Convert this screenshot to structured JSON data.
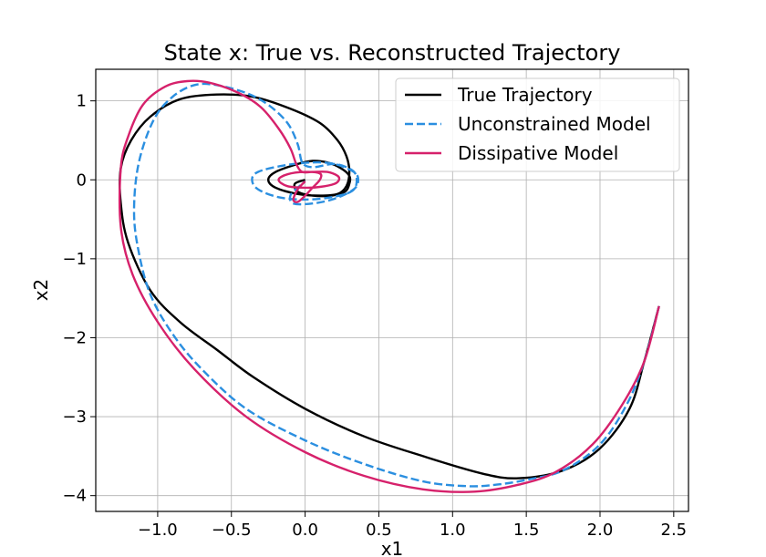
{
  "chart_data": {
    "type": "line",
    "title": "State x: True vs. Reconstructed Trajectory",
    "xlabel": "x1",
    "ylabel": "x2",
    "xlim": [
      -1.42,
      2.6
    ],
    "ylim": [
      -4.2,
      1.4
    ],
    "xticks": [
      -1.0,
      -0.5,
      0.0,
      0.5,
      1.0,
      1.5,
      2.0,
      2.5
    ],
    "xtick_labels": [
      "−1.0",
      "−0.5",
      "0.0",
      "0.5",
      "1.0",
      "1.5",
      "2.0",
      "2.5"
    ],
    "yticks": [
      -4,
      -3,
      -2,
      -1,
      0,
      1
    ],
    "ytick_labels": [
      "−4",
      "−3",
      "−2",
      "−1",
      "0",
      "1"
    ],
    "grid": true,
    "legend_position": "top-right",
    "series": [
      {
        "name": "True Trajectory",
        "color": "#000000",
        "style": "solid",
        "points": [
          [
            2.4,
            -1.6
          ],
          [
            2.3,
            -2.3
          ],
          [
            2.2,
            -2.9
          ],
          [
            2.0,
            -3.4
          ],
          [
            1.75,
            -3.68
          ],
          [
            1.45,
            -3.78
          ],
          [
            1.2,
            -3.72
          ],
          [
            0.8,
            -3.5
          ],
          [
            0.4,
            -3.25
          ],
          [
            0.0,
            -2.9
          ],
          [
            -0.35,
            -2.5
          ],
          [
            -0.6,
            -2.15
          ],
          [
            -0.85,
            -1.8
          ],
          [
            -1.05,
            -1.4
          ],
          [
            -1.2,
            -0.8
          ],
          [
            -1.25,
            -0.3
          ],
          [
            -1.25,
            0.15
          ],
          [
            -1.18,
            0.5
          ],
          [
            -1.05,
            0.8
          ],
          [
            -0.85,
            1.02
          ],
          [
            -0.6,
            1.08
          ],
          [
            -0.35,
            1.05
          ],
          [
            -0.1,
            0.9
          ],
          [
            0.1,
            0.72
          ],
          [
            0.22,
            0.5
          ],
          [
            0.28,
            0.3
          ],
          [
            0.3,
            0.1
          ],
          [
            0.28,
            -0.08
          ],
          [
            0.22,
            -0.18
          ],
          [
            0.1,
            -0.2
          ],
          [
            -0.05,
            -0.18
          ],
          [
            -0.2,
            -0.1
          ],
          [
            -0.25,
            0.0
          ],
          [
            -0.2,
            0.1
          ],
          [
            -0.05,
            0.2
          ],
          [
            0.05,
            0.24
          ],
          [
            0.15,
            0.22
          ],
          [
            0.24,
            0.15
          ],
          [
            0.3,
            0.05
          ],
          [
            0.3,
            -0.05
          ],
          [
            0.27,
            -0.15
          ],
          [
            0.18,
            -0.2
          ],
          [
            0.05,
            -0.2
          ],
          [
            -0.05,
            -0.15
          ],
          [
            -0.07,
            -0.05
          ],
          [
            0.0,
            0.0
          ]
        ]
      },
      {
        "name": "Unconstrained Model",
        "color": "#2b8fe0",
        "style": "dashed",
        "points": [
          [
            2.4,
            -1.6
          ],
          [
            2.3,
            -2.3
          ],
          [
            2.18,
            -2.85
          ],
          [
            2.0,
            -3.35
          ],
          [
            1.75,
            -3.68
          ],
          [
            1.5,
            -3.8
          ],
          [
            1.3,
            -3.86
          ],
          [
            1.1,
            -3.88
          ],
          [
            0.8,
            -3.82
          ],
          [
            0.4,
            -3.6
          ],
          [
            0.0,
            -3.3
          ],
          [
            -0.4,
            -2.9
          ],
          [
            -0.7,
            -2.4
          ],
          [
            -0.9,
            -1.95
          ],
          [
            -1.05,
            -1.45
          ],
          [
            -1.13,
            -0.9
          ],
          [
            -1.16,
            -0.4
          ],
          [
            -1.13,
            0.2
          ],
          [
            -1.03,
            0.75
          ],
          [
            -0.9,
            1.05
          ],
          [
            -0.75,
            1.2
          ],
          [
            -0.6,
            1.2
          ],
          [
            -0.4,
            1.1
          ],
          [
            -0.25,
            0.95
          ],
          [
            -0.12,
            0.72
          ],
          [
            -0.05,
            0.45
          ],
          [
            -0.02,
            0.22
          ],
          [
            0.05,
            0.16
          ],
          [
            0.2,
            0.2
          ],
          [
            0.32,
            0.12
          ],
          [
            0.35,
            0.0
          ],
          [
            0.32,
            -0.14
          ],
          [
            0.18,
            -0.22
          ],
          [
            0.0,
            -0.25
          ],
          [
            -0.18,
            -0.22
          ],
          [
            -0.32,
            -0.12
          ],
          [
            -0.36,
            0.0
          ],
          [
            -0.32,
            0.1
          ],
          [
            -0.15,
            0.18
          ],
          [
            0.05,
            0.22
          ],
          [
            0.2,
            0.2
          ],
          [
            0.33,
            0.1
          ],
          [
            0.36,
            0.0
          ],
          [
            0.33,
            -0.12
          ],
          [
            0.2,
            -0.24
          ],
          [
            0.05,
            -0.3
          ],
          [
            -0.08,
            -0.3
          ],
          [
            -0.1,
            -0.2
          ],
          [
            -0.05,
            -0.1
          ],
          [
            0.0,
            -0.02
          ]
        ]
      },
      {
        "name": "Dissipative Model",
        "color": "#d6216b",
        "style": "solid",
        "points": [
          [
            2.4,
            -1.6
          ],
          [
            2.3,
            -2.3
          ],
          [
            2.15,
            -2.85
          ],
          [
            1.95,
            -3.35
          ],
          [
            1.7,
            -3.7
          ],
          [
            1.45,
            -3.86
          ],
          [
            1.15,
            -3.95
          ],
          [
            0.8,
            -3.92
          ],
          [
            0.4,
            -3.75
          ],
          [
            0.0,
            -3.45
          ],
          [
            -0.4,
            -3.0
          ],
          [
            -0.75,
            -2.4
          ],
          [
            -1.0,
            -1.8
          ],
          [
            -1.17,
            -1.2
          ],
          [
            -1.25,
            -0.6
          ],
          [
            -1.25,
            0.15
          ],
          [
            -1.2,
            0.55
          ],
          [
            -1.1,
            0.95
          ],
          [
            -0.95,
            1.18
          ],
          [
            -0.8,
            1.25
          ],
          [
            -0.65,
            1.23
          ],
          [
            -0.45,
            1.1
          ],
          [
            -0.3,
            0.92
          ],
          [
            -0.18,
            0.65
          ],
          [
            -0.1,
            0.4
          ],
          [
            -0.06,
            0.2
          ],
          [
            -0.02,
            0.1
          ],
          [
            0.05,
            0.1
          ],
          [
            0.15,
            0.1
          ],
          [
            0.22,
            0.05
          ],
          [
            0.23,
            0.0
          ],
          [
            0.2,
            -0.05
          ],
          [
            0.1,
            -0.09
          ],
          [
            0.0,
            -0.1
          ],
          [
            -0.12,
            -0.08
          ],
          [
            -0.18,
            0.0
          ],
          [
            -0.12,
            0.07
          ],
          [
            0.0,
            0.1
          ],
          [
            0.1,
            0.08
          ],
          [
            0.1,
            0.0
          ],
          [
            0.05,
            -0.1
          ],
          [
            0.0,
            -0.2
          ],
          [
            -0.05,
            -0.28
          ],
          [
            -0.08,
            -0.25
          ],
          [
            -0.05,
            -0.12
          ],
          [
            0.0,
            -0.02
          ]
        ]
      }
    ]
  }
}
